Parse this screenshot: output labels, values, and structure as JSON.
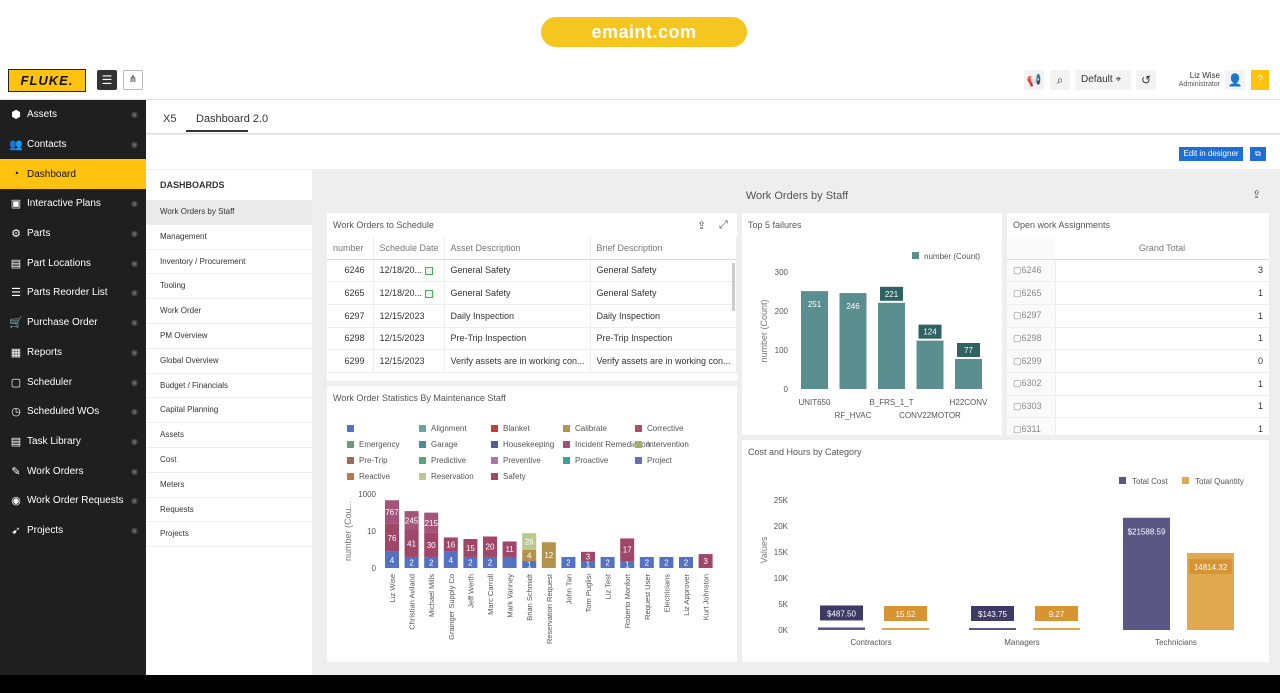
{
  "banner": {
    "text": "emaint.com"
  },
  "brand": {
    "logo": "FLUKE."
  },
  "topbar": {
    "menu_icon": "hamburger-icon",
    "tree_icon": "sitemap-icon",
    "megaphone_icon": "megaphone-icon",
    "search_icon": "search-icon",
    "location_label": "Default",
    "history_icon": "history-icon",
    "user_name": "Liz Wise",
    "user_role": "Administrator",
    "help_label": "?"
  },
  "sidebar": {
    "items": [
      {
        "label": "Assets",
        "icon": "cube-icon",
        "glyph": "⬢"
      },
      {
        "label": "Contacts",
        "icon": "users-icon",
        "glyph": "👥"
      },
      {
        "label": "Dashboard",
        "icon": "pie-icon",
        "glyph": "◔"
      },
      {
        "label": "Interactive Plans",
        "icon": "image-icon",
        "glyph": "▣"
      },
      {
        "label": "Parts",
        "icon": "cogs-icon",
        "glyph": "⚙"
      },
      {
        "label": "Part Locations",
        "icon": "map-icon",
        "glyph": "▤"
      },
      {
        "label": "Parts Reorder List",
        "icon": "list-icon",
        "glyph": "☰"
      },
      {
        "label": "Purchase Order",
        "icon": "cart-icon",
        "glyph": "🛒"
      },
      {
        "label": "Reports",
        "icon": "table-icon",
        "glyph": "▦"
      },
      {
        "label": "Scheduler",
        "icon": "calendar-icon",
        "glyph": "▢"
      },
      {
        "label": "Scheduled WOs",
        "icon": "clock-icon",
        "glyph": "◷"
      },
      {
        "label": "Task Library",
        "icon": "tasks-icon",
        "glyph": "▤"
      },
      {
        "label": "Work Orders",
        "icon": "wrench-icon",
        "glyph": "✎"
      },
      {
        "label": "Work Order Requests",
        "icon": "request-icon",
        "glyph": "◉"
      },
      {
        "label": "Projects",
        "icon": "rocket-icon",
        "glyph": "➹"
      }
    ],
    "active": "Dashboard"
  },
  "tabs": [
    {
      "label": "X5"
    },
    {
      "label": "Dashboard 2.0"
    }
  ],
  "actions": {
    "edit_label": "Edit in designer",
    "popout_icon": "external-link-icon"
  },
  "dashboards": {
    "heading": "DASHBOARDS",
    "items": [
      "Work Orders by Staff",
      "Management",
      "Inventory / Procurement",
      "Tooling",
      "Work Order",
      "PM Overview",
      "Global Overview",
      "Budget / Financials",
      "Capital Planning",
      "Assets",
      "Cost",
      "Meters",
      "Requests",
      "Projects"
    ]
  },
  "dashboard_title": "Work Orders by Staff",
  "wo_schedule": {
    "title": "Work Orders to Schedule",
    "columns": [
      "number",
      "Schedule Date",
      "Asset Description",
      "Brief Description"
    ],
    "rows": [
      {
        "number": "6246",
        "date": "12/18/20...",
        "flag": true,
        "asset": "General Safety",
        "brief": "General Safety"
      },
      {
        "number": "6265",
        "date": "12/18/20...",
        "flag": true,
        "asset": "General Safety",
        "brief": "General Safety"
      },
      {
        "number": "6297",
        "date": "12/15/2023",
        "flag": false,
        "asset": "Daily Inspection",
        "brief": "Daily Inspection"
      },
      {
        "number": "6298",
        "date": "12/15/2023",
        "flag": false,
        "asset": "Pre-Trip Inspection",
        "brief": "Pre-Trip Inspection"
      },
      {
        "number": "6299",
        "date": "12/15/2023",
        "flag": false,
        "asset": "Verify assets are in working con...",
        "brief": "Verify assets are in working con..."
      }
    ]
  },
  "open_assignments": {
    "title": "Open work Assignments",
    "column": "Grand Total",
    "rows": [
      {
        "key": "6246",
        "value": "3"
      },
      {
        "key": "6265",
        "value": "1"
      },
      {
        "key": "6297",
        "value": "1"
      },
      {
        "key": "6298",
        "value": "1"
      },
      {
        "key": "6299",
        "value": "0"
      },
      {
        "key": "6302",
        "value": "1"
      },
      {
        "key": "6303",
        "value": "1"
      },
      {
        "key": "6311",
        "value": "1"
      }
    ]
  },
  "chart_data": [
    {
      "type": "bar",
      "title": "Top 5 failures",
      "ylabel": "number (Count)",
      "legend": [
        "number (Count)"
      ],
      "legend_position": "top-right",
      "categories": [
        "UNIT650",
        "RF_HVAC",
        "B_FRS_1_T",
        "CONV22MOTOR",
        "H22CONV"
      ],
      "values": [
        251,
        246,
        221,
        124,
        77
      ],
      "yticks": [
        "0",
        "100",
        "200",
        "300"
      ],
      "ylim": [
        0,
        300
      ],
      "color": "#5b8f8f"
    },
    {
      "type": "bar",
      "title": "Work Order Statistics By Maintenance Staff",
      "ylabel": "number (Cou...",
      "yscale": "log",
      "yticks": [
        "0",
        "10",
        "1000"
      ],
      "legend_position": "top",
      "legend": [
        {
          "name": "",
          "color": "#5472c4"
        },
        {
          "name": "Alignment",
          "color": "#6aa3a3"
        },
        {
          "name": "Blanket",
          "color": "#c04040"
        },
        {
          "name": "Calibrate",
          "color": "#b5934a"
        },
        {
          "name": "Corrective",
          "color": "#a85060"
        },
        {
          "name": "Emergency",
          "color": "#6f9a6f"
        },
        {
          "name": "Garage",
          "color": "#4c8f8f"
        },
        {
          "name": "Housekeeping",
          "color": "#555d8f"
        },
        {
          "name": "Incident Remediation",
          "color": "#a0507a"
        },
        {
          "name": "Intervention",
          "color": "#a6b060"
        },
        {
          "name": "Pre-Trip",
          "color": "#9a6c5a"
        },
        {
          "name": "Predictive",
          "color": "#5da37a"
        },
        {
          "name": "Preventive",
          "color": "#b075a8"
        },
        {
          "name": "Proactive",
          "color": "#3aa0a0"
        },
        {
          "name": "Project",
          "color": "#6470b8"
        },
        {
          "name": "Reactive",
          "color": "#b57a45"
        },
        {
          "name": "Reservation",
          "color": "#b8c890"
        },
        {
          "name": "Safety",
          "color": "#a04668"
        }
      ],
      "categories": [
        "Liz Wise",
        "Christian Aviland",
        "Michael Mills",
        "Grainger Supply Co",
        "Jeff Werth",
        "Marc Carroll",
        "Mark Vanney",
        "Brian Schmidt",
        "Reservation Request",
        "John Tan",
        "Tom Puglisi",
        "Liz Test",
        "Roberto Monfort",
        "Request User",
        "Electricians",
        "Liz Approver",
        "Kurt Johnston"
      ],
      "series": [
        {
          "name": "bottom",
          "values": [
            4,
            2,
            2,
            4,
            2,
            2,
            2,
            1,
            0,
            2,
            1,
            2,
            1,
            2,
            2,
            2,
            0
          ]
        },
        {
          "name": "middle",
          "values": [
            76,
            41,
            30,
            16,
            15,
            20,
            11,
            4,
            12,
            0,
            3,
            0,
            17,
            0,
            0,
            0,
            3
          ]
        },
        {
          "name": "top",
          "values": [
            767,
            245,
            215,
            0,
            0,
            0,
            0,
            26,
            0,
            0,
            0,
            0,
            0,
            0,
            0,
            0,
            0
          ]
        }
      ],
      "labels": [
        [
          "4",
          "76",
          "767"
        ],
        [
          "2",
          "41",
          "245"
        ],
        [
          "2",
          "30",
          "215"
        ],
        [
          "4",
          "16",
          ""
        ],
        [
          "2",
          "15",
          ""
        ],
        [
          "2",
          "20",
          ""
        ],
        [
          "",
          "11",
          ""
        ],
        [
          "1",
          "4",
          "26"
        ],
        [
          "",
          "12",
          ""
        ],
        [
          "2",
          "",
          ""
        ],
        [
          "1",
          "3",
          ""
        ],
        [
          "2",
          "",
          ""
        ],
        [
          "1",
          "17",
          ""
        ],
        [
          "2",
          "",
          ""
        ],
        [
          "2",
          "",
          ""
        ],
        [
          "2",
          "",
          ""
        ],
        [
          "",
          "3",
          ""
        ]
      ]
    },
    {
      "type": "bar",
      "title": "Cost and Hours by Category",
      "ylabel": "Values",
      "legend_position": "top-right",
      "categories": [
        "Contractors",
        "Managers",
        "Technicians"
      ],
      "series": [
        {
          "name": "Total Cost",
          "color": "#5a5784",
          "values": [
            487.5,
            143.75,
            21588.59
          ],
          "labels": [
            "$487.50",
            "$143.75",
            "$21588.59"
          ]
        },
        {
          "name": "Total Quantity",
          "color": "#e0a84f",
          "values": [
            15.52,
            9.27,
            14814.32
          ],
          "labels": [
            "15.52",
            "9.27",
            "14814.32"
          ]
        }
      ],
      "yticks": [
        "0K",
        "5K",
        "10K",
        "15K",
        "20K",
        "25K"
      ],
      "ylim": [
        0,
        25000
      ]
    }
  ],
  "panel_icons": {
    "share": "share-icon",
    "expand": "expand-icon"
  }
}
